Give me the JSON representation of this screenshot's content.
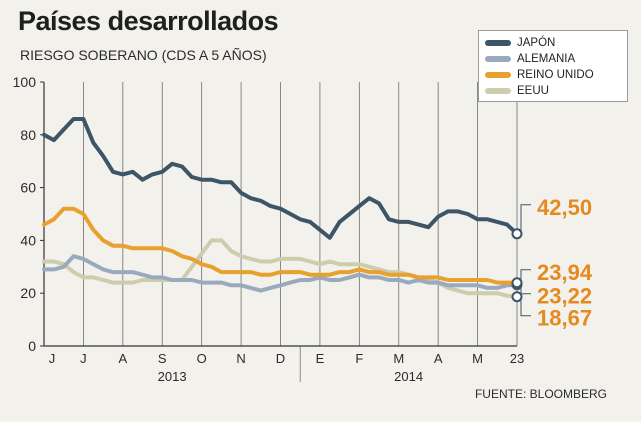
{
  "title": "Países desarrollados",
  "subtitle": "RIESGO SOBERANO (CDS A 5 AÑOS)",
  "source": "FUENTE: BLOOMBERG",
  "chart_data": {
    "type": "line",
    "title": "Países desarrollados",
    "subtitle": "RIESGO SOBERANO (CDS A 5 AÑOS)",
    "xlabel": "",
    "ylabel": "",
    "ylim": [
      0,
      100
    ],
    "y_ticks": [
      0,
      20,
      40,
      60,
      80,
      100
    ],
    "x_ticks": [
      "J",
      "J",
      "A",
      "S",
      "O",
      "N",
      "D",
      "E",
      "F",
      "M",
      "A",
      "M",
      "23"
    ],
    "x_years": [
      "2013",
      "2014"
    ],
    "x": [
      0,
      0.25,
      0.5,
      0.75,
      1,
      1.25,
      1.5,
      1.75,
      2,
      2.25,
      2.5,
      2.75,
      3,
      3.25,
      3.5,
      3.75,
      4,
      4.25,
      4.5,
      4.75,
      5,
      5.25,
      5.5,
      5.75,
      6,
      6.25,
      6.5,
      6.75,
      7,
      7.25,
      7.5,
      7.75,
      8,
      8.25,
      8.5,
      8.75,
      9,
      9.25,
      9.5,
      9.75,
      10,
      10.25,
      10.5,
      10.75,
      11,
      11.25,
      11.5,
      11.75,
      12
    ],
    "series": [
      {
        "name": "JAPÓN",
        "color": "#3d5566",
        "values": [
          80,
          78,
          82,
          86,
          86,
          77,
          72,
          66,
          65,
          66,
          63,
          65,
          66,
          69,
          68,
          64,
          63,
          63,
          62,
          62,
          58,
          56,
          55,
          53,
          52,
          50,
          48,
          47,
          44,
          41,
          47,
          50,
          53,
          56,
          54,
          48,
          47,
          47,
          46,
          45,
          49,
          51,
          51,
          50,
          48,
          48,
          47,
          46,
          42.5
        ],
        "end_label": "42,50"
      },
      {
        "name": "ALEMANIA",
        "color": "#9aaabe",
        "values": [
          29,
          29,
          30,
          34,
          33,
          31,
          29,
          28,
          28,
          28,
          27,
          26,
          26,
          25,
          25,
          25,
          24,
          24,
          24,
          23,
          23,
          22,
          21,
          22,
          23,
          24,
          25,
          25,
          26,
          25,
          25,
          26,
          27,
          26,
          26,
          25,
          25,
          24,
          25,
          24,
          24,
          23,
          23,
          23,
          23,
          22,
          22,
          23,
          23.22
        ],
        "end_label": "23,22"
      },
      {
        "name": "REINO UNIDO",
        "color": "#e8a02f",
        "values": [
          46,
          48,
          52,
          52,
          50,
          44,
          40,
          38,
          38,
          37,
          37,
          37,
          37,
          36,
          34,
          33,
          31,
          30,
          28,
          28,
          28,
          28,
          27,
          27,
          28,
          28,
          28,
          27,
          27,
          27,
          28,
          28,
          29,
          28,
          28,
          27,
          27,
          27,
          26,
          26,
          26,
          25,
          25,
          25,
          25,
          25,
          24,
          24,
          23.94
        ],
        "end_label": "23,94"
      },
      {
        "name": "EEUU",
        "color": "#cdcdae",
        "values": [
          32,
          32,
          31,
          28,
          26,
          26,
          25,
          24,
          24,
          24,
          25,
          25,
          25,
          25,
          25,
          30,
          35,
          40,
          40,
          36,
          34,
          33,
          32,
          32,
          33,
          33,
          33,
          32,
          31,
          32,
          31,
          31,
          31,
          30,
          29,
          28,
          28,
          27,
          26,
          25,
          24,
          22,
          21,
          20,
          20,
          20,
          20,
          19,
          18.67
        ],
        "end_label": "18,67"
      }
    ],
    "legend_position": "top-right",
    "grid": "vertical"
  }
}
